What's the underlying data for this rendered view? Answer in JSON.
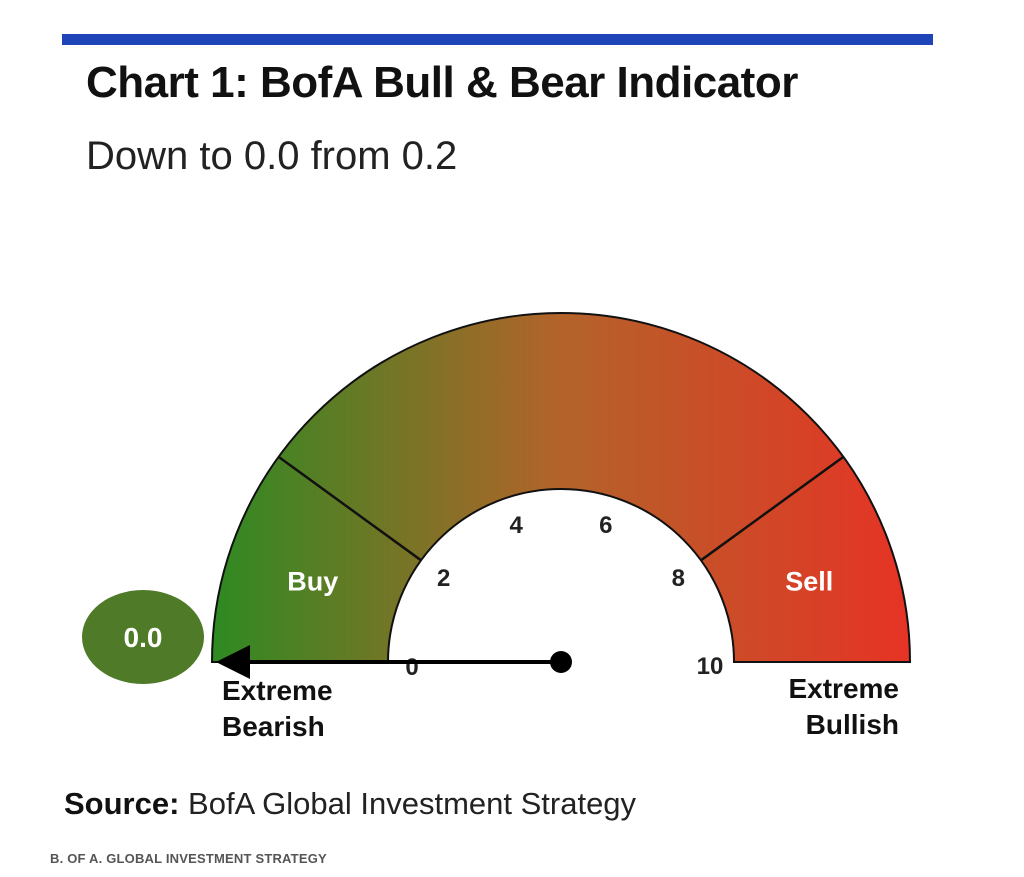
{
  "header": {
    "title": "Chart 1: BofA Bull & Bear Indicator",
    "subtitle": "Down to 0.0 from 0.2"
  },
  "chart_data": {
    "type": "gauge",
    "title": "Chart 1: BofA Bull & Bear Indicator",
    "subtitle": "Down to 0.0 from 0.2",
    "value": 0.0,
    "value_label": "0.0",
    "previous_value": 0.2,
    "range": [
      0,
      10
    ],
    "ticks": [
      {
        "value": 0,
        "label": "0"
      },
      {
        "value": 2,
        "label": "2"
      },
      {
        "value": 4,
        "label": "4"
      },
      {
        "value": 6,
        "label": "6"
      },
      {
        "value": 8,
        "label": "8"
      },
      {
        "value": 10,
        "label": "10"
      }
    ],
    "zones": [
      {
        "name": "Buy",
        "from": 0,
        "to": 2
      },
      {
        "name": "Sell",
        "from": 8,
        "to": 10
      }
    ],
    "end_labels": {
      "low": [
        "Extreme",
        "Bearish"
      ],
      "high": [
        "Extreme",
        "Bullish"
      ]
    },
    "colors": {
      "low": "#2e8a22",
      "mid": "#b3632a",
      "high": "#e63325",
      "value_badge": "#4f7a28",
      "value_text": "#ffffff"
    }
  },
  "source": {
    "label": "Source:",
    "text": " BofA Global Investment Strategy"
  },
  "credit": "B. OF A. GLOBAL INVESTMENT STRATEGY"
}
